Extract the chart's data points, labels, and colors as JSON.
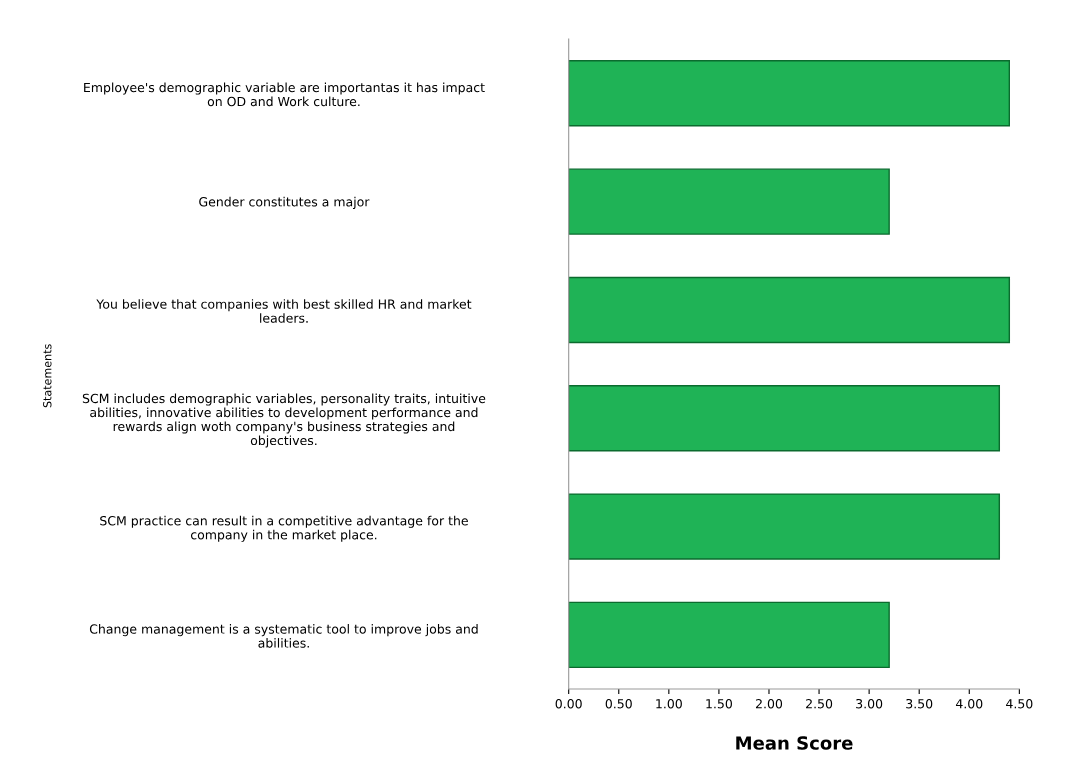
{
  "chart_data": {
    "type": "bar",
    "orientation": "horizontal",
    "xlabel": "Mean Score",
    "ylabel": "Statements",
    "categories": [
      "Employee's demographic variable are importantas it has impact\non OD and Work culture.",
      "Gender constitutes a major",
      "You believe that companies with best skilled HR and market\nleaders.",
      "SCM includes demographic variables, personality traits, intuitive\nabilities, innovative abilities to development performance and\nrewards align woth company's business strategies and\nobjectives.",
      "SCM practice can result in a competitive advantage for the\ncompany in the market place.",
      "Change management is a systematic tool to improve jobs and\nabilities."
    ],
    "values": [
      4.4,
      3.2,
      4.4,
      4.3,
      4.3,
      3.2
    ],
    "color": "#1fb356",
    "xlim": [
      0,
      4.5
    ],
    "xticks": [
      {
        "value": 0,
        "label": "0.00"
      },
      {
        "value": 0.5,
        "label": "0.50"
      },
      {
        "value": 1,
        "label": "1.00"
      },
      {
        "value": 1.5,
        "label": "1.50"
      },
      {
        "value": 2,
        "label": "2.00"
      },
      {
        "value": 2.5,
        "label": "2.50"
      },
      {
        "value": 3,
        "label": "3.00"
      },
      {
        "value": 3.5,
        "label": "3.50"
      },
      {
        "value": 4,
        "label": "4.00"
      },
      {
        "value": 4.5,
        "label": "4.50"
      }
    ],
    "grid": false
  }
}
